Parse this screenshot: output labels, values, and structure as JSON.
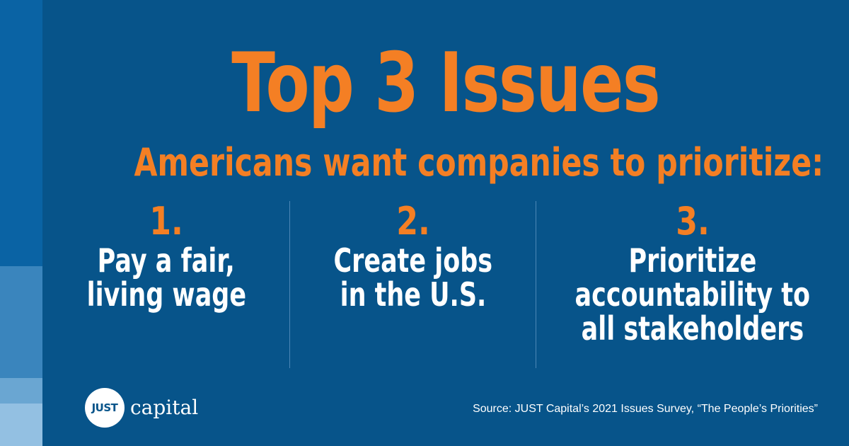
{
  "graphic": {
    "title": "Top 3 Issues",
    "subtitle": "Americans want companies to prioritize:",
    "colors": {
      "background": "#07548a",
      "accent": "#f47f24",
      "text": "#ffffff",
      "strip": [
        "#0a63a4",
        "#3a85bd",
        "#6aa6d2",
        "#93c0e2"
      ]
    }
  },
  "issues": [
    {
      "number": "1.",
      "lines": [
        "Pay a fair,",
        "living wage"
      ]
    },
    {
      "number": "2.",
      "lines": [
        "Create jobs",
        "in the U.S."
      ]
    },
    {
      "number": "3.",
      "lines": [
        "Prioritize",
        "accountability to",
        "all stakeholders"
      ]
    }
  ],
  "footer": {
    "logo_mark": "JUST",
    "logo_word": "capital",
    "source": "Source: JUST Capital’s 2021 Issues Survey, “The People’s Priorities”"
  }
}
